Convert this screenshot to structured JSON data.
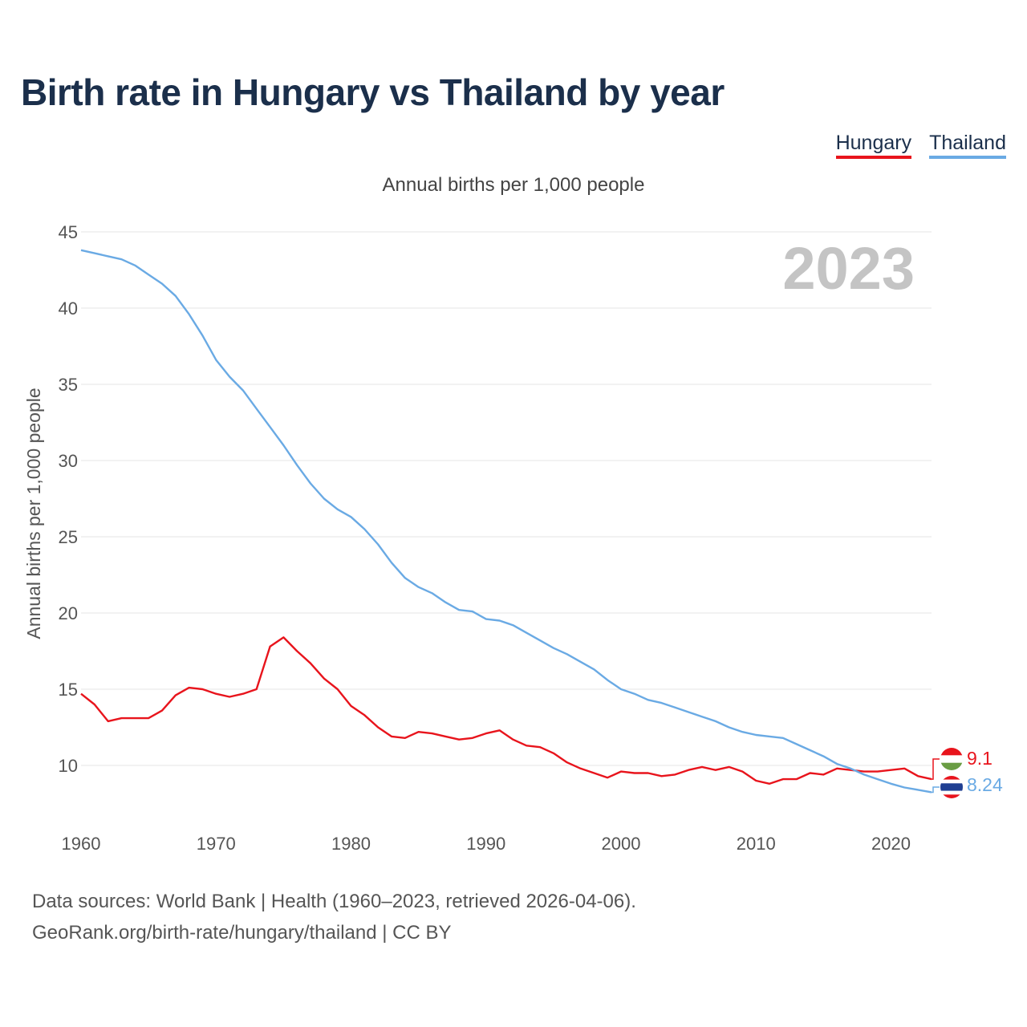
{
  "header": {
    "title": "Birth rate in Hungary vs Thailand by year",
    "subtitle": "Annual births per 1,000 people"
  },
  "legend": [
    {
      "label": "Hungary",
      "color": "#e8141c"
    },
    {
      "label": "Thailand",
      "color": "#6aaae4"
    }
  ],
  "footer": {
    "line1": "Data sources: World Bank | Health (1960–2023, retrieved 2026-04-06).",
    "line2": "GeoRank.org/birth-rate/hungary/thailand | CC BY"
  },
  "chart_data": {
    "type": "line",
    "title": "Birth rate in Hungary vs Thailand by year",
    "ylabel": "Annual births per 1,000 people",
    "xlabel": "",
    "xlim": [
      1960,
      2023
    ],
    "ylim": [
      6,
      45
    ],
    "x_ticks": [
      1960,
      1970,
      1980,
      1990,
      2000,
      2010,
      2020
    ],
    "y_ticks": [
      10,
      15,
      20,
      25,
      30,
      35,
      40,
      45
    ],
    "grid": true,
    "year_label": "2023",
    "x": [
      1960,
      1961,
      1962,
      1963,
      1964,
      1965,
      1966,
      1967,
      1968,
      1969,
      1970,
      1971,
      1972,
      1973,
      1974,
      1975,
      1976,
      1977,
      1978,
      1979,
      1980,
      1981,
      1982,
      1983,
      1984,
      1985,
      1986,
      1987,
      1988,
      1989,
      1990,
      1991,
      1992,
      1993,
      1994,
      1995,
      1996,
      1997,
      1998,
      1999,
      2000,
      2001,
      2002,
      2003,
      2004,
      2005,
      2006,
      2007,
      2008,
      2009,
      2010,
      2011,
      2012,
      2013,
      2014,
      2015,
      2016,
      2017,
      2018,
      2019,
      2020,
      2021,
      2022,
      2023
    ],
    "series": [
      {
        "name": "Hungary",
        "color": "#e8141c",
        "end_label": "9.1",
        "values": [
          14.7,
          14.0,
          12.9,
          13.1,
          13.1,
          13.1,
          13.6,
          14.6,
          15.1,
          15.0,
          14.7,
          14.5,
          14.7,
          15.0,
          17.8,
          18.4,
          17.5,
          16.7,
          15.7,
          15.0,
          13.9,
          13.3,
          12.5,
          11.9,
          11.8,
          12.2,
          12.1,
          11.9,
          11.7,
          11.8,
          12.1,
          12.3,
          11.7,
          11.3,
          11.2,
          10.8,
          10.2,
          9.8,
          9.5,
          9.2,
          9.6,
          9.5,
          9.5,
          9.3,
          9.4,
          9.7,
          9.9,
          9.7,
          9.9,
          9.6,
          9.0,
          8.8,
          9.1,
          9.1,
          9.5,
          9.4,
          9.8,
          9.7,
          9.6,
          9.6,
          9.7,
          9.8,
          9.3,
          9.1
        ]
      },
      {
        "name": "Thailand",
        "color": "#6aaae4",
        "end_label": "8.24",
        "values": [
          43.8,
          43.6,
          43.4,
          43.2,
          42.8,
          42.2,
          41.6,
          40.8,
          39.6,
          38.2,
          36.6,
          35.5,
          34.6,
          33.4,
          32.2,
          31.0,
          29.7,
          28.5,
          27.5,
          26.8,
          26.3,
          25.5,
          24.5,
          23.3,
          22.3,
          21.7,
          21.3,
          20.7,
          20.2,
          20.1,
          19.6,
          19.5,
          19.2,
          18.7,
          18.2,
          17.7,
          17.3,
          16.8,
          16.3,
          15.6,
          15.0,
          14.7,
          14.3,
          14.1,
          13.8,
          13.5,
          13.2,
          12.9,
          12.5,
          12.2,
          12.0,
          11.9,
          11.8,
          11.4,
          11.0,
          10.6,
          10.1,
          9.8,
          9.4,
          9.1,
          8.8,
          8.55,
          8.4,
          8.24
        ]
      }
    ]
  }
}
